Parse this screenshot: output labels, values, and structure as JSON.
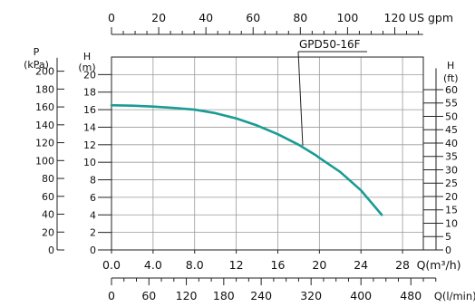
{
  "chart_data": {
    "type": "line",
    "model_label": "GPD50-16F",
    "series": [
      {
        "name": "GPD50-16F",
        "color": "#1a9b94",
        "x": [
          0,
          2,
          4,
          6,
          8,
          10,
          12,
          14,
          16,
          18,
          19.6,
          20,
          22,
          24,
          26
        ],
        "y": [
          16.5,
          16.45,
          16.35,
          16.2,
          16.0,
          15.6,
          15.0,
          14.2,
          13.2,
          12.0,
          10.85,
          10.5,
          8.9,
          6.8,
          4.0
        ]
      }
    ],
    "model_pointer": {
      "x": 18.4,
      "y": 11.9
    },
    "axes": {
      "x_main": {
        "label": "Q(m³/h)",
        "ticks": [
          0,
          4,
          8,
          12,
          16,
          20,
          24,
          28
        ],
        "tick_labels": [
          "0.0",
          "4.0",
          "8.0",
          "12",
          "16",
          "20",
          "24",
          "28"
        ],
        "range": [
          0,
          30
        ]
      },
      "x_usgpm": {
        "label": "US gpm",
        "ticks": [
          0,
          20,
          40,
          60,
          80,
          100,
          120
        ],
        "tick_labels": [
          "0",
          "20",
          "40",
          "60",
          "80",
          "100",
          "120"
        ]
      },
      "x_lmin": {
        "label": "Q(l/min)",
        "ticks": [
          0,
          60,
          120,
          180,
          240,
          320,
          400,
          480
        ],
        "tick_labels": [
          "0",
          "60",
          "120",
          "180",
          "240",
          "320",
          "400",
          "480"
        ]
      },
      "y_main": {
        "label_top": "H",
        "label_unit": "(m)",
        "ticks": [
          0,
          2,
          4,
          6,
          8,
          10,
          12,
          14,
          16,
          18,
          20
        ],
        "tick_labels": [
          "0",
          "2",
          "4",
          "6",
          "8",
          "10",
          "12",
          "14",
          "16",
          "18",
          "20"
        ],
        "range": [
          0,
          22
        ]
      },
      "y_kpa": {
        "label_top": "P",
        "label_unit": "(kPa)",
        "ticks": [
          0,
          20,
          40,
          60,
          80,
          100,
          120,
          140,
          160,
          180,
          200
        ],
        "tick_labels": [
          "0",
          "20",
          "40",
          "60",
          "80",
          "100",
          "120",
          "140",
          "160",
          "180",
          "200"
        ]
      },
      "y_ft": {
        "label_top": "H",
        "label_unit": "(ft)",
        "ticks": [
          0,
          5,
          10,
          15,
          20,
          25,
          30,
          35,
          40,
          45,
          50,
          55,
          60
        ],
        "tick_labels": [
          "0",
          "5",
          "10",
          "15",
          "20",
          "25",
          "30",
          "35",
          "40",
          "45",
          "50",
          "55",
          "60"
        ]
      }
    },
    "grid": true
  }
}
